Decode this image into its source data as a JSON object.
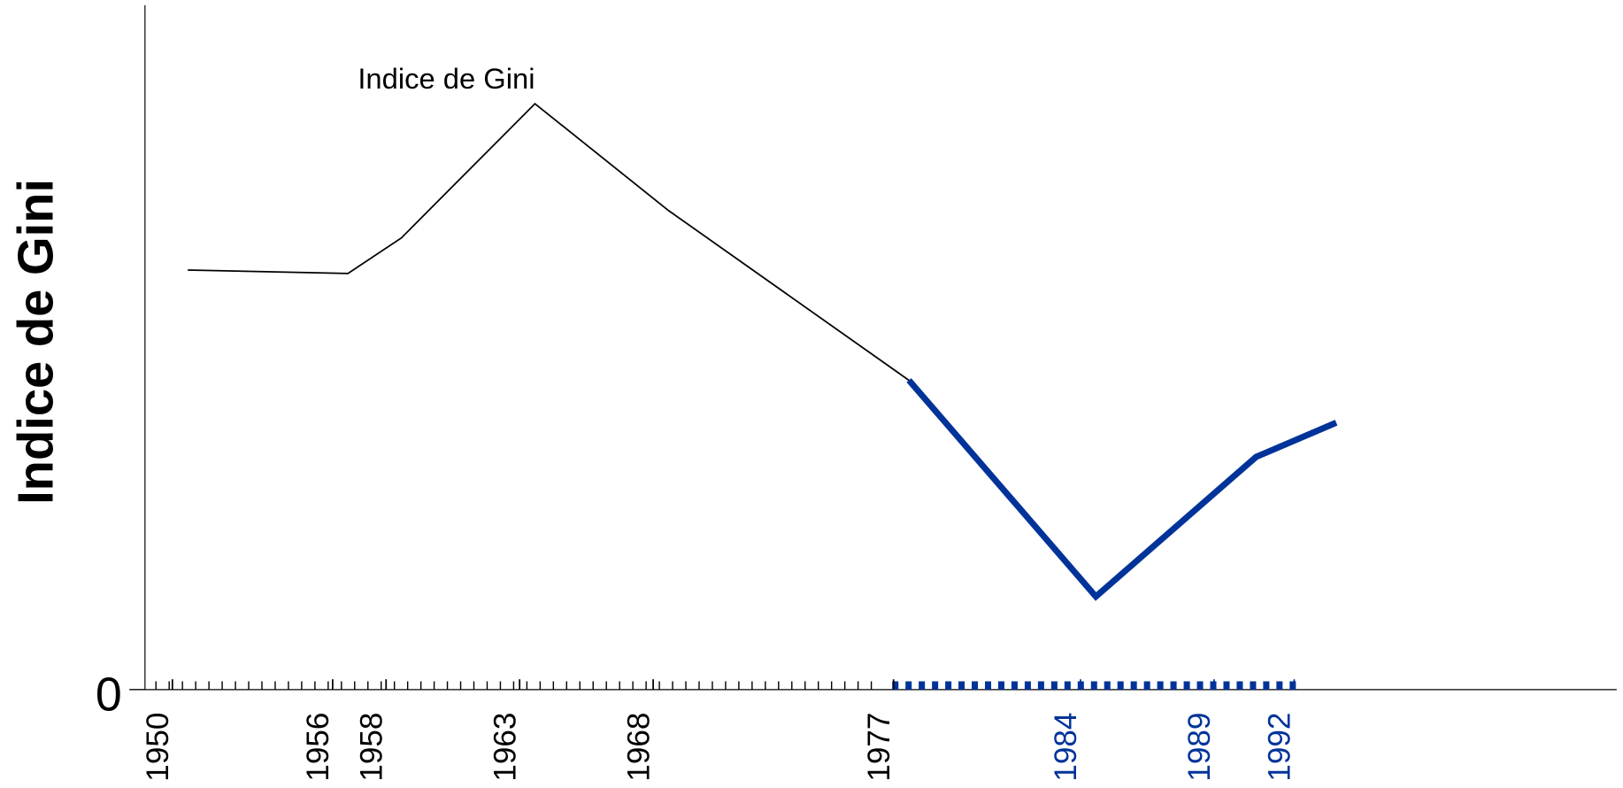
{
  "chart_data": {
    "type": "line",
    "y_label": "Indice de Gini",
    "x": [
      1951,
      1957,
      1959,
      1964,
      1969,
      1978,
      1985,
      1991,
      1994
    ],
    "series": [
      {
        "name": "Indice de Gini",
        "color": "#000000",
        "width": 1.5,
        "values": [
          61.3,
          60.8,
          66,
          85.6,
          70,
          45.2,
          null,
          null,
          null
        ]
      },
      {
        "color": "#003399",
        "width": 6,
        "values": [
          null,
          null,
          null,
          null,
          null,
          45.2,
          13.6,
          34,
          39
        ]
      }
    ],
    "xlim": [
      1949.4,
      2004.5
    ],
    "xticks": [
      1950,
      1956,
      1958,
      1963,
      1968,
      1977,
      1984,
      1989,
      1992
    ],
    "xtick_colors": [
      "#000000",
      "#000000",
      "#000000",
      "#000000",
      "#000000",
      "#000000",
      "#003399",
      "#003399",
      "#003399"
    ],
    "ylim": [
      0,
      100
    ],
    "yticks": [
      0
    ]
  }
}
